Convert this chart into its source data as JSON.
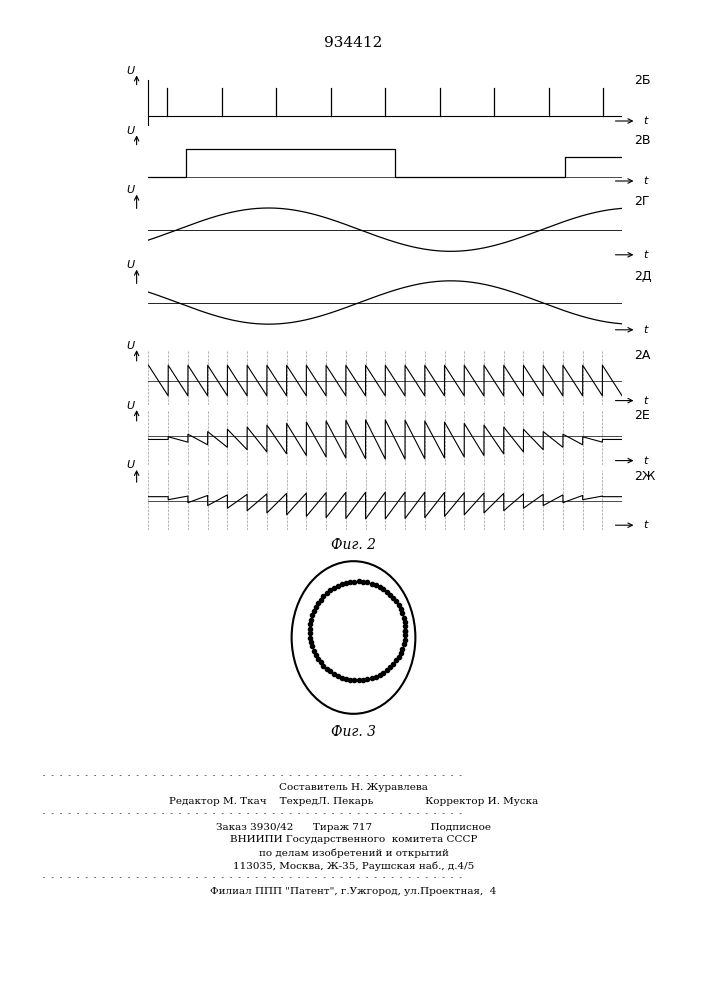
{
  "title": "934412",
  "fig2_label": "Фиг. 2",
  "fig3_label": "Фиг. 3",
  "footer_text": [
    "Составитель Н. Журавлева",
    "Редактор М. Ткач    ТехредЛ. Пекарь                Корректор И. Муска",
    "Заказ 3930/42      Тираж 717                  Подписное",
    "ВНИИПИ Государственного  комитета СССР",
    "по делам изобретений и открытий",
    "113035, Москва, Ж-35, Раушская наб., д.4/5",
    "Филиал ППП \"Патент\", г.Ужгород, ул.Проектная,  4"
  ],
  "background_color": "#ffffff",
  "text_color": "#000000"
}
